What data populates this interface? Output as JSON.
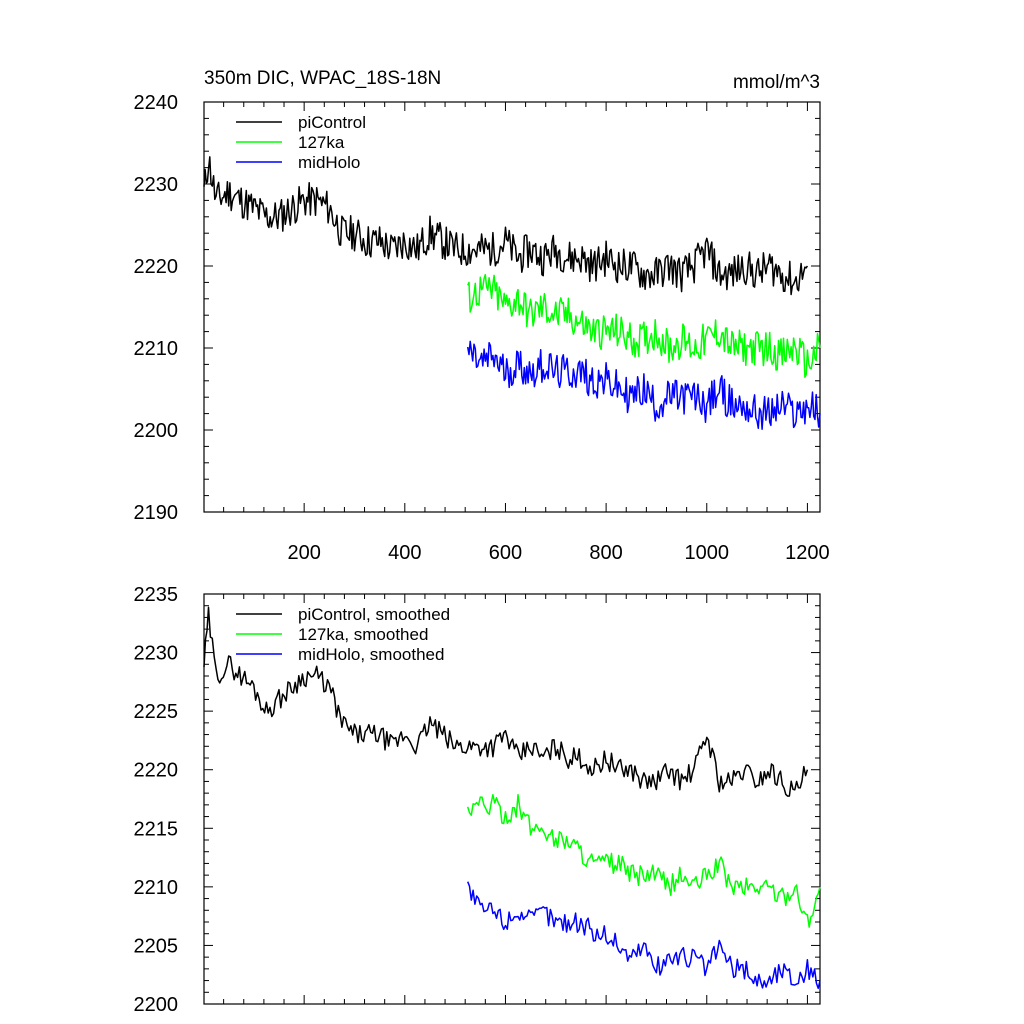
{
  "chart_data": [
    {
      "type": "line",
      "title": "350m DIC, WPAC_18S-18N",
      "units": "mmol/m^3",
      "xlim": [
        1,
        1225
      ],
      "ylim": [
        2190,
        2240
      ],
      "x_ticks": [
        200,
        400,
        600,
        800,
        1000,
        1200
      ],
      "x_tick_labels": [
        "200",
        "400",
        "600",
        "800",
        "1000",
        "1200"
      ],
      "y_ticks": [
        2190,
        2200,
        2210,
        2220,
        2230,
        2240
      ],
      "y_tick_labels": [
        "2190",
        "2200",
        "2210",
        "2220",
        "2230",
        "2240"
      ],
      "legend_position": "top-left",
      "grid": false,
      "series": [
        {
          "name": "piControl",
          "color": "#000000",
          "x": [
            1,
            10,
            25,
            50,
            75,
            100,
            125,
            150,
            175,
            200,
            225,
            250,
            275,
            300,
            325,
            350,
            375,
            400,
            425,
            450,
            475,
            500,
            525,
            550,
            575,
            600,
            625,
            650,
            675,
            700,
            725,
            750,
            775,
            800,
            825,
            850,
            875,
            900,
            925,
            950,
            975,
            1000,
            1025,
            1050,
            1075,
            1100,
            1125,
            1150,
            1175,
            1200
          ],
          "values": [
            2229,
            2233,
            2228,
            2229,
            2228,
            2227,
            2226,
            2226,
            2227,
            2228,
            2228,
            2227,
            2224,
            2224,
            2223,
            2223,
            2222,
            2223,
            2222,
            2224,
            2223,
            2222,
            2222,
            2222,
            2222,
            2223,
            2221,
            2222,
            2221,
            2222,
            2221,
            2221,
            2220,
            2221,
            2220,
            2220,
            2219,
            2219,
            2220,
            2219,
            2220,
            2222,
            2219,
            2219,
            2220,
            2219,
            2220,
            2219,
            2218,
            2220
          ]
        },
        {
          "name": "127ka",
          "color": "#00ff00",
          "x": [
            525,
            550,
            575,
            600,
            625,
            650,
            675,
            700,
            725,
            750,
            775,
            800,
            825,
            850,
            875,
            900,
            925,
            950,
            975,
            1000,
            1025,
            1050,
            1075,
            1100,
            1125,
            1150,
            1175,
            1200,
            1225
          ],
          "values": [
            2216,
            2217,
            2217,
            2215,
            2216,
            2214,
            2215,
            2214,
            2214,
            2213,
            2212,
            2212,
            2212,
            2211,
            2211,
            2212,
            2210,
            2211,
            2210,
            2211,
            2212,
            2210,
            2210,
            2210,
            2210,
            2209,
            2210,
            2208,
            2210
          ]
        },
        {
          "name": "midHolo",
          "color": "#0000ff",
          "x": [
            525,
            550,
            575,
            600,
            625,
            650,
            675,
            700,
            725,
            750,
            775,
            800,
            825,
            850,
            875,
            900,
            925,
            950,
            975,
            1000,
            1025,
            1050,
            1075,
            1100,
            1125,
            1150,
            1175,
            1200,
            1225
          ],
          "values": [
            2210,
            2208,
            2209,
            2207,
            2208,
            2207,
            2208,
            2207,
            2207,
            2207,
            2206,
            2206,
            2205,
            2204,
            2205,
            2203,
            2204,
            2204,
            2204,
            2203,
            2205,
            2203,
            2203,
            2202,
            2202,
            2203,
            2202,
            2203,
            2202
          ]
        }
      ]
    },
    {
      "type": "line",
      "xlim": [
        1,
        1225
      ],
      "ylim": [
        2200,
        2235
      ],
      "x_ticks": [
        200,
        400,
        600,
        800,
        1000,
        1200
      ],
      "y_ticks": [
        2200,
        2205,
        2210,
        2215,
        2220,
        2225,
        2230,
        2235
      ],
      "y_tick_labels": [
        "2200",
        "2205",
        "2210",
        "2215",
        "2220",
        "2225",
        "2230",
        "2235"
      ],
      "legend_position": "top-left",
      "grid": false,
      "series": [
        {
          "name": "piControl, smoothed",
          "color": "#000000",
          "x": [
            1,
            10,
            25,
            50,
            75,
            100,
            125,
            150,
            175,
            200,
            225,
            250,
            275,
            300,
            325,
            350,
            375,
            400,
            425,
            450,
            475,
            500,
            525,
            550,
            575,
            600,
            625,
            650,
            675,
            700,
            725,
            750,
            775,
            800,
            825,
            850,
            875,
            900,
            925,
            950,
            975,
            1000,
            1025,
            1050,
            1075,
            1100,
            1125,
            1150,
            1175,
            1200
          ],
          "values": [
            2229,
            2233,
            2228,
            2229,
            2228,
            2227,
            2225,
            2226,
            2227,
            2228,
            2228,
            2227,
            2224,
            2223,
            2223,
            2223,
            2222,
            2223,
            2222,
            2224,
            2223,
            2222,
            2222,
            2222,
            2222,
            2223,
            2221,
            2222,
            2221,
            2222,
            2221,
            2221,
            2220,
            2221,
            2220,
            2220,
            2219,
            2219,
            2220,
            2219,
            2220,
            2223,
            2219,
            2219,
            2220,
            2219,
            2220,
            2219,
            2218,
            2220
          ]
        },
        {
          "name": "127ka, smoothed",
          "color": "#00ff00",
          "x": [
            525,
            550,
            575,
            600,
            625,
            650,
            675,
            700,
            725,
            750,
            775,
            800,
            825,
            850,
            875,
            900,
            925,
            950,
            975,
            1000,
            1025,
            1050,
            1075,
            1100,
            1125,
            1150,
            1175,
            1200,
            1225
          ],
          "values": [
            2216,
            2217,
            2217,
            2216,
            2217,
            2215,
            2215,
            2214,
            2214,
            2213,
            2212,
            2212,
            2212,
            2211,
            2211,
            2211,
            2210,
            2211,
            2210,
            2211,
            2212,
            2210,
            2210,
            2210,
            2210,
            2209,
            2210,
            2207,
            2210
          ]
        },
        {
          "name": "midHolo, smoothed",
          "color": "#0000ff",
          "x": [
            525,
            550,
            575,
            600,
            625,
            650,
            675,
            700,
            725,
            750,
            775,
            800,
            825,
            850,
            875,
            900,
            925,
            950,
            975,
            1000,
            1025,
            1050,
            1075,
            1100,
            1125,
            1150,
            1175,
            1200,
            1225
          ],
          "values": [
            2210,
            2208,
            2208,
            2207,
            2208,
            2207,
            2208,
            2207,
            2207,
            2207,
            2206,
            2206,
            2205,
            2204,
            2205,
            2203,
            2204,
            2204,
            2204,
            2203,
            2205,
            2203,
            2203,
            2202,
            2202,
            2203,
            2202,
            2203,
            2202
          ]
        }
      ]
    }
  ]
}
